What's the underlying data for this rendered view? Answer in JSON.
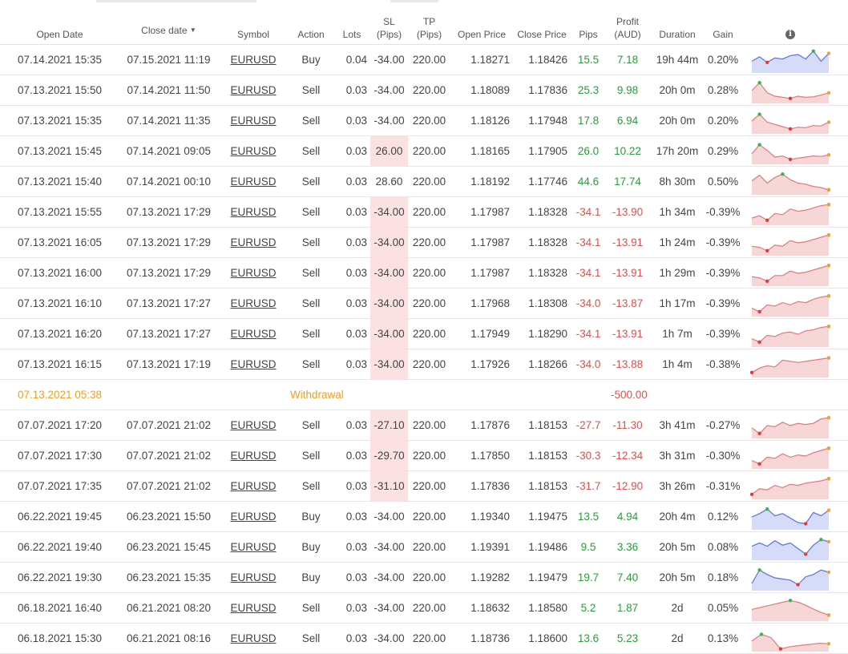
{
  "headers": {
    "open_date": "Open Date",
    "close_date": "Close date",
    "sort_arrow": "▼",
    "symbol": "Symbol",
    "action": "Action",
    "lots": "Lots",
    "sl_1": "SL",
    "sl_2": "(Pips)",
    "tp_1": "TP",
    "tp_2": "(Pips)",
    "open_price": "Open Price",
    "close_price": "Close Price",
    "pips": "Pips",
    "profit_1": "Profit",
    "profit_2": "(AUD)",
    "duration": "Duration",
    "gain": "Gain",
    "info_icon": "i"
  },
  "colors": {
    "positive": "#2a9d3c",
    "negative": "#d9534f",
    "withdrawal": "#f0a020",
    "sl_highlight": "#fbe1e1",
    "spark_buy_fill": "#d6dcf7",
    "spark_buy_line": "#5b72e0",
    "spark_sell_fill": "#f6d6d6",
    "spark_sell_line": "#e07b7b"
  },
  "rows": [
    {
      "type": "trade",
      "open": "07.14.2021 15:35",
      "close": "07.15.2021 11:19",
      "symbol": "EURUSD",
      "action": "Buy",
      "lots": "0.04",
      "sl": "-34.00",
      "sl_hl": false,
      "tp": "220.00",
      "open_price": "1.18271",
      "close_price": "1.18426",
      "pips": "15.5",
      "profit": "7.18",
      "duration": "19h 44m",
      "gain": "0.20%",
      "positive": true,
      "comment": false,
      "spark": [
        0.55,
        0.35,
        0.6,
        0.4,
        0.45,
        0.3,
        0.25,
        0.45,
        0.1,
        0.55,
        0.2
      ]
    },
    {
      "type": "trade",
      "open": "07.13.2021 15:50",
      "close": "07.14.2021 11:50",
      "symbol": "EURUSD",
      "action": "Sell",
      "lots": "0.03",
      "sl": "-34.00",
      "sl_hl": false,
      "tp": "220.00",
      "open_price": "1.18089",
      "close_price": "1.17836",
      "pips": "25.3",
      "profit": "9.98",
      "duration": "20h 0m",
      "gain": "0.28%",
      "positive": true,
      "comment": false,
      "spark": [
        0.5,
        0.15,
        0.6,
        0.75,
        0.8,
        0.85,
        0.75,
        0.8,
        0.78,
        0.7,
        0.6
      ]
    },
    {
      "type": "trade",
      "open": "07.13.2021 15:35",
      "close": "07.14.2021 11:35",
      "symbol": "EURUSD",
      "action": "Sell",
      "lots": "0.03",
      "sl": "-34.00",
      "sl_hl": false,
      "tp": "220.00",
      "open_price": "1.18126",
      "close_price": "1.17948",
      "pips": "17.8",
      "profit": "6.94",
      "duration": "20h 0m",
      "gain": "0.20%",
      "positive": true,
      "comment": false,
      "spark": [
        0.5,
        0.2,
        0.55,
        0.65,
        0.75,
        0.85,
        0.78,
        0.8,
        0.7,
        0.72,
        0.55
      ]
    },
    {
      "type": "trade",
      "open": "07.13.2021 15:45",
      "close": "07.14.2021 09:05",
      "symbol": "EURUSD",
      "action": "Sell",
      "lots": "0.03",
      "sl": "26.00",
      "sl_hl": true,
      "tp": "220.00",
      "open_price": "1.18165",
      "close_price": "1.17905",
      "pips": "26.0",
      "profit": "10.22",
      "duration": "17h 20m",
      "gain": "0.29%",
      "positive": true,
      "comment": true,
      "spark": [
        0.6,
        0.2,
        0.45,
        0.75,
        0.7,
        0.85,
        0.8,
        0.75,
        0.7,
        0.72,
        0.65
      ]
    },
    {
      "type": "trade",
      "open": "07.13.2021 15:40",
      "close": "07.14.2021 00:10",
      "symbol": "EURUSD",
      "action": "Sell",
      "lots": "0.03",
      "sl": "28.60",
      "sl_hl": false,
      "tp": "220.00",
      "open_price": "1.18192",
      "close_price": "1.17746",
      "pips": "44.6",
      "profit": "17.74",
      "duration": "8h 30m",
      "gain": "0.50%",
      "positive": true,
      "comment": false,
      "spark": [
        0.45,
        0.2,
        0.55,
        0.3,
        0.15,
        0.4,
        0.55,
        0.6,
        0.7,
        0.75,
        0.85
      ]
    },
    {
      "type": "trade",
      "open": "07.13.2021 15:55",
      "close": "07.13.2021 17:29",
      "symbol": "EURUSD",
      "action": "Sell",
      "lots": "0.03",
      "sl": "-34.00",
      "sl_hl": true,
      "tp": "220.00",
      "open_price": "1.17987",
      "close_price": "1.18328",
      "pips": "-34.1",
      "profit": "-13.90",
      "duration": "1h 34m",
      "gain": "-0.39%",
      "positive": false,
      "comment": true,
      "spark": [
        0.75,
        0.65,
        0.85,
        0.55,
        0.6,
        0.35,
        0.45,
        0.4,
        0.3,
        0.2,
        0.15
      ]
    },
    {
      "type": "trade",
      "open": "07.13.2021 16:05",
      "close": "07.13.2021 17:29",
      "symbol": "EURUSD",
      "action": "Sell",
      "lots": "0.03",
      "sl": "-34.00",
      "sl_hl": true,
      "tp": "220.00",
      "open_price": "1.17987",
      "close_price": "1.18328",
      "pips": "-34.1",
      "profit": "-13.91",
      "duration": "1h 24m",
      "gain": "-0.39%",
      "positive": false,
      "comment": true,
      "spark": [
        0.65,
        0.7,
        0.85,
        0.6,
        0.65,
        0.4,
        0.5,
        0.45,
        0.35,
        0.25,
        0.15
      ]
    },
    {
      "type": "trade",
      "open": "07.13.2021 16:00",
      "close": "07.13.2021 17:29",
      "symbol": "EURUSD",
      "action": "Sell",
      "lots": "0.03",
      "sl": "-34.00",
      "sl_hl": true,
      "tp": "220.00",
      "open_price": "1.17987",
      "close_price": "1.18328",
      "pips": "-34.1",
      "profit": "-13.91",
      "duration": "1h 29m",
      "gain": "-0.39%",
      "positive": false,
      "comment": true,
      "spark": [
        0.65,
        0.7,
        0.85,
        0.6,
        0.6,
        0.4,
        0.5,
        0.45,
        0.35,
        0.25,
        0.15
      ]
    },
    {
      "type": "trade",
      "open": "07.13.2021 16:10",
      "close": "07.13.2021 17:27",
      "symbol": "EURUSD",
      "action": "Sell",
      "lots": "0.03",
      "sl": "-34.00",
      "sl_hl": true,
      "tp": "220.00",
      "open_price": "1.17968",
      "close_price": "1.18308",
      "pips": "-34.0",
      "profit": "-13.87",
      "duration": "1h 17m",
      "gain": "-0.39%",
      "positive": false,
      "comment": true,
      "spark": [
        0.7,
        0.85,
        0.55,
        0.6,
        0.45,
        0.55,
        0.4,
        0.45,
        0.3,
        0.2,
        0.15
      ]
    },
    {
      "type": "trade",
      "open": "07.13.2021 16:20",
      "close": "07.13.2021 17:27",
      "symbol": "EURUSD",
      "action": "Sell",
      "lots": "0.03",
      "sl": "-34.00",
      "sl_hl": true,
      "tp": "220.00",
      "open_price": "1.17949",
      "close_price": "1.18290",
      "pips": "-34.1",
      "profit": "-13.91",
      "duration": "1h 7m",
      "gain": "-0.39%",
      "positive": false,
      "comment": true,
      "spark": [
        0.7,
        0.85,
        0.55,
        0.6,
        0.45,
        0.4,
        0.5,
        0.35,
        0.3,
        0.2,
        0.15
      ]
    },
    {
      "type": "trade",
      "open": "07.13.2021 16:15",
      "close": "07.13.2021 17:19",
      "symbol": "EURUSD",
      "action": "Sell",
      "lots": "0.03",
      "sl": "-34.00",
      "sl_hl": true,
      "tp": "220.00",
      "open_price": "1.17926",
      "close_price": "1.18266",
      "pips": "-34.0",
      "profit": "-13.88",
      "duration": "1h 4m",
      "gain": "-0.38%",
      "positive": false,
      "comment": true,
      "spark": [
        0.85,
        0.65,
        0.55,
        0.6,
        0.3,
        0.35,
        0.4,
        0.35,
        0.3,
        0.25,
        0.2
      ]
    },
    {
      "type": "withdrawal",
      "open": "07.13.2021 05:38",
      "label": "Withdrawal",
      "amount": "-500.00",
      "comment": true
    },
    {
      "type": "trade",
      "open": "07.07.2021 17:20",
      "close": "07.07.2021 21:02",
      "symbol": "EURUSD",
      "action": "Sell",
      "lots": "0.03",
      "sl": "-27.10",
      "sl_hl": true,
      "tp": "220.00",
      "open_price": "1.17876",
      "close_price": "1.18153",
      "pips": "-27.7",
      "profit": "-11.30",
      "duration": "3h 41m",
      "gain": "-0.27%",
      "positive": false,
      "comment": true,
      "spark": [
        0.6,
        0.85,
        0.5,
        0.55,
        0.35,
        0.5,
        0.4,
        0.45,
        0.4,
        0.2,
        0.15
      ]
    },
    {
      "type": "trade",
      "open": "07.07.2021 17:30",
      "close": "07.07.2021 21:02",
      "symbol": "EURUSD",
      "action": "Sell",
      "lots": "0.03",
      "sl": "-29.70",
      "sl_hl": true,
      "tp": "220.00",
      "open_price": "1.17850",
      "close_price": "1.18153",
      "pips": "-30.3",
      "profit": "-12.34",
      "duration": "3h 31m",
      "gain": "-0.30%",
      "positive": false,
      "comment": true,
      "spark": [
        0.7,
        0.85,
        0.55,
        0.6,
        0.4,
        0.55,
        0.45,
        0.5,
        0.35,
        0.25,
        0.15
      ]
    },
    {
      "type": "trade",
      "open": "07.07.2021 17:35",
      "close": "07.07.2021 21:02",
      "symbol": "EURUSD",
      "action": "Sell",
      "lots": "0.03",
      "sl": "-31.10",
      "sl_hl": true,
      "tp": "220.00",
      "open_price": "1.17836",
      "close_price": "1.18153",
      "pips": "-31.7",
      "profit": "-12.90",
      "duration": "3h 26m",
      "gain": "-0.31%",
      "positive": false,
      "comment": true,
      "spark": [
        0.85,
        0.6,
        0.65,
        0.45,
        0.55,
        0.4,
        0.45,
        0.35,
        0.3,
        0.25,
        0.15
      ]
    },
    {
      "type": "trade",
      "open": "06.22.2021 19:45",
      "close": "06.23.2021 15:50",
      "symbol": "EURUSD",
      "action": "Buy",
      "lots": "0.03",
      "sl": "-34.00",
      "sl_hl": false,
      "tp": "220.00",
      "open_price": "1.19340",
      "close_price": "1.19475",
      "pips": "13.5",
      "profit": "4.94",
      "duration": "20h 4m",
      "gain": "0.12%",
      "positive": true,
      "comment": false,
      "spark": [
        0.5,
        0.35,
        0.15,
        0.45,
        0.35,
        0.55,
        0.75,
        0.8,
        0.3,
        0.45,
        0.2
      ]
    },
    {
      "type": "trade",
      "open": "06.22.2021 19:40",
      "close": "06.23.2021 15:45",
      "symbol": "EURUSD",
      "action": "Buy",
      "lots": "0.03",
      "sl": "-34.00",
      "sl_hl": false,
      "tp": "220.00",
      "open_price": "1.19391",
      "close_price": "1.19486",
      "pips": "9.5",
      "profit": "3.36",
      "duration": "20h 5m",
      "gain": "0.08%",
      "positive": true,
      "comment": false,
      "spark": [
        0.45,
        0.3,
        0.45,
        0.2,
        0.4,
        0.3,
        0.55,
        0.8,
        0.4,
        0.15,
        0.25
      ]
    },
    {
      "type": "trade",
      "open": "06.22.2021 19:30",
      "close": "06.23.2021 15:35",
      "symbol": "EURUSD",
      "action": "Buy",
      "lots": "0.03",
      "sl": "-34.00",
      "sl_hl": false,
      "tp": "220.00",
      "open_price": "1.19282",
      "close_price": "1.19479",
      "pips": "19.7",
      "profit": "7.40",
      "duration": "20h 5m",
      "gain": "0.18%",
      "positive": true,
      "comment": false,
      "spark": [
        0.75,
        0.15,
        0.35,
        0.5,
        0.55,
        0.6,
        0.8,
        0.45,
        0.35,
        0.15,
        0.25
      ]
    },
    {
      "type": "trade",
      "open": "06.18.2021 16:40",
      "close": "06.21.2021 08:20",
      "symbol": "EURUSD",
      "action": "Sell",
      "lots": "0.03",
      "sl": "-34.00",
      "sl_hl": false,
      "tp": "220.00",
      "open_price": "1.18632",
      "close_price": "1.18580",
      "pips": "5.2",
      "profit": "1.87",
      "duration": "2d",
      "gain": "0.05%",
      "positive": true,
      "comment": false,
      "spark": [
        0.55,
        0.45,
        0.35,
        0.25,
        0.15,
        0.25,
        0.45,
        0.65,
        0.8
      ]
    },
    {
      "type": "trade",
      "open": "06.18.2021 15:30",
      "close": "06.21.2021 08:16",
      "symbol": "EURUSD",
      "action": "Sell",
      "lots": "0.03",
      "sl": "-34.00",
      "sl_hl": false,
      "tp": "220.00",
      "open_price": "1.18736",
      "close_price": "1.18600",
      "pips": "13.6",
      "profit": "5.23",
      "duration": "2d",
      "gain": "0.13%",
      "positive": true,
      "comment": false,
      "spark": [
        0.6,
        0.3,
        0.45,
        0.95,
        0.85,
        0.8,
        0.75,
        0.7,
        0.72
      ]
    }
  ]
}
